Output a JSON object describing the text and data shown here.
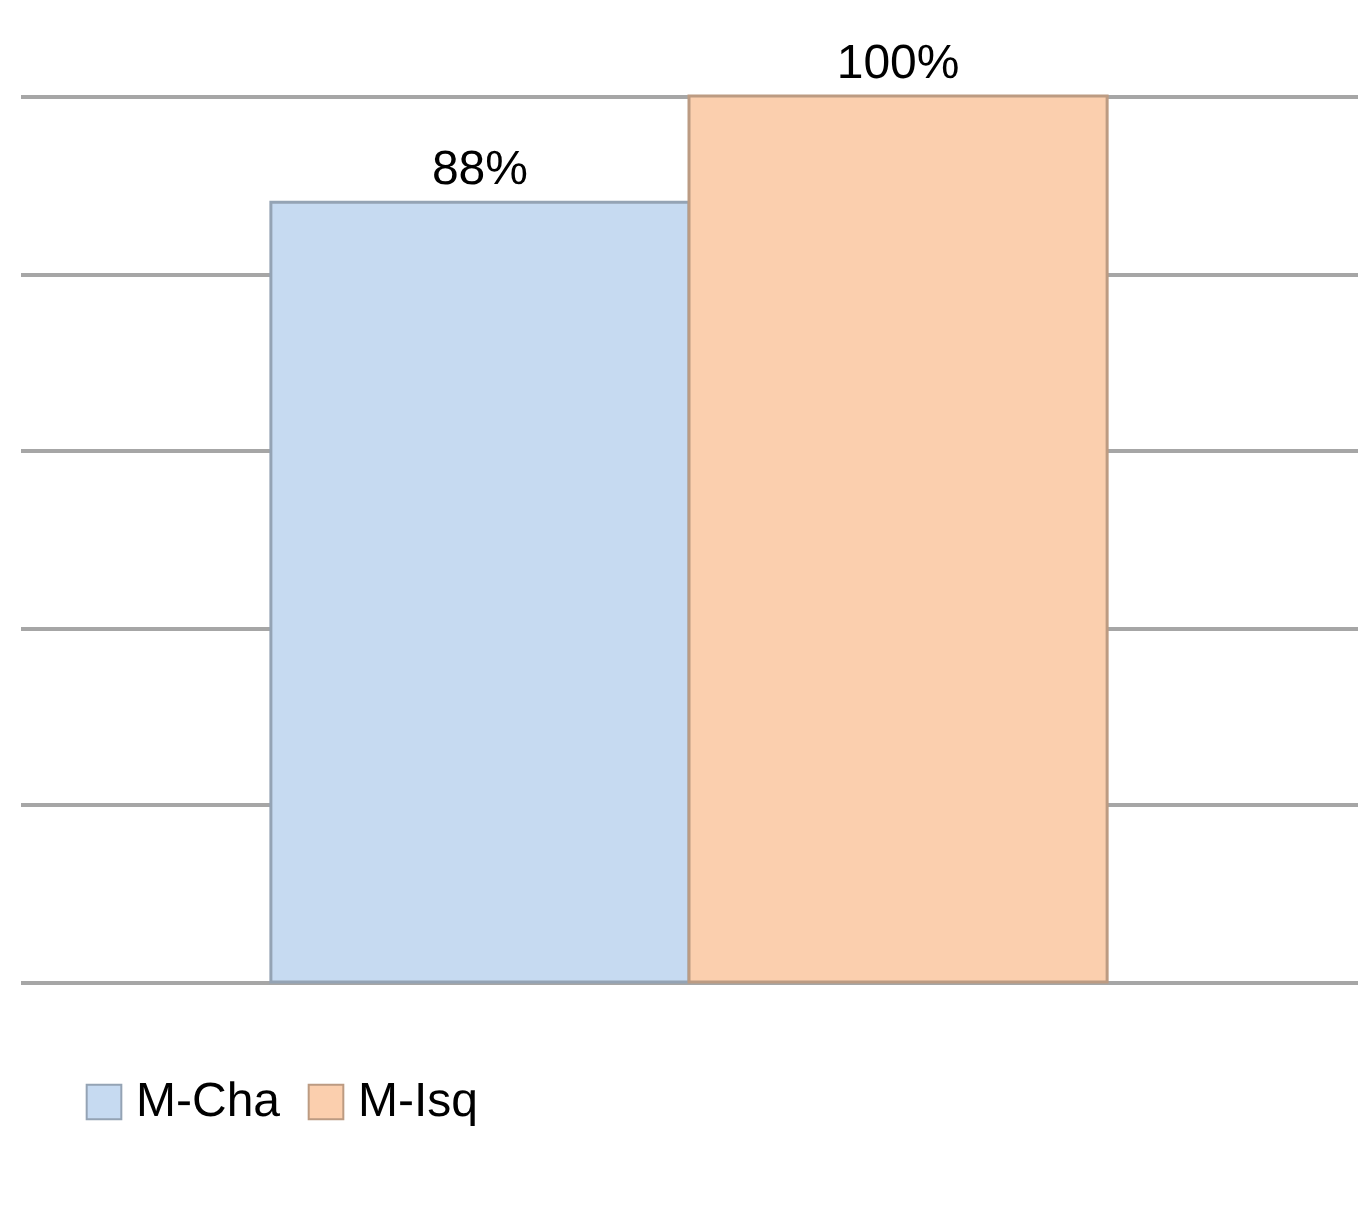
{
  "chart_data": {
    "type": "bar",
    "categories": [
      null
    ],
    "series": [
      {
        "name": "M-Cha",
        "color": "#c6daf1",
        "values": [
          88
        ],
        "value_labels": [
          "88%"
        ]
      },
      {
        "name": "M-Isq",
        "color": "#fbcfae",
        "values": [
          100
        ],
        "value_labels": [
          "100%"
        ]
      }
    ],
    "grid": "y",
    "legend": "bottom",
    "tick_labels": false
  }
}
